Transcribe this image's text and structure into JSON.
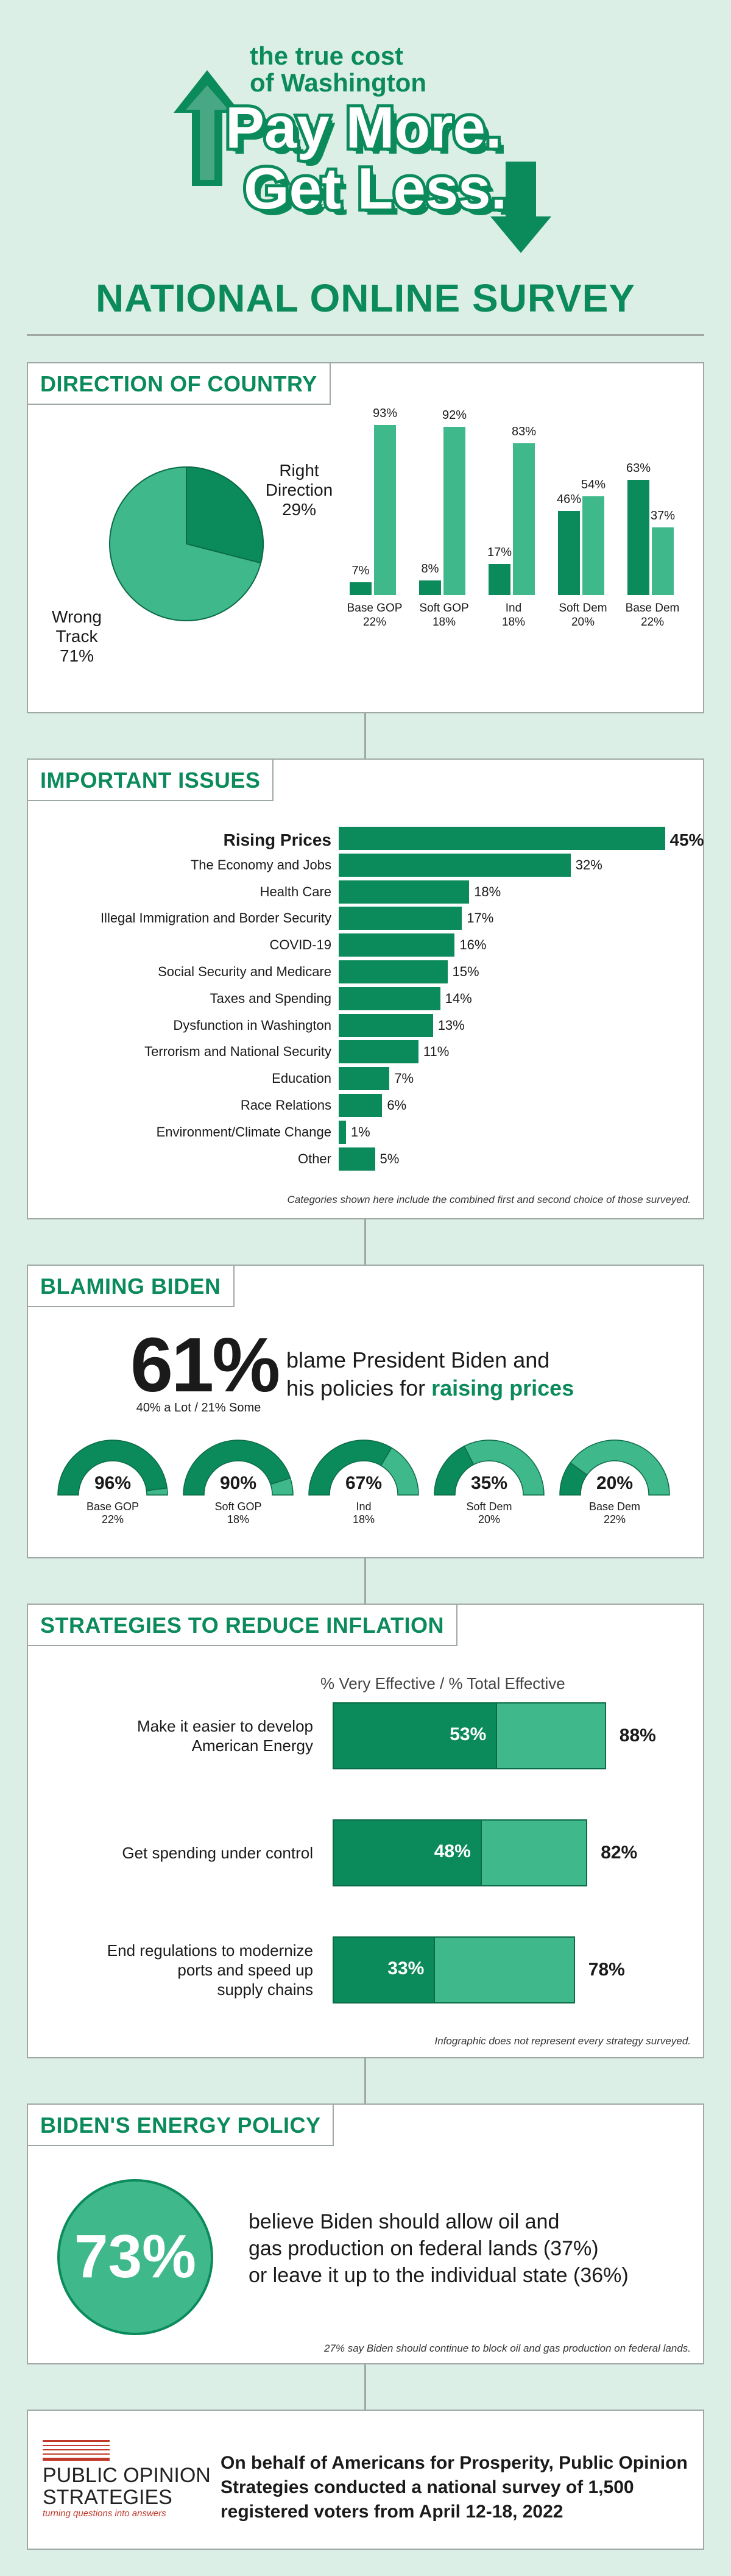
{
  "header": {
    "tagline_line1": "the true cost",
    "tagline_line2": "of Washington",
    "logo_line1": "Pay More.",
    "logo_line2": "Get Less.",
    "survey_title": "NATIONAL ONLINE SURVEY"
  },
  "direction": {
    "title": "DIRECTION OF COUNTRY",
    "right_label": "Right\nDirection\n29%",
    "right_l1": "Right",
    "right_l2": "Direction",
    "right_pct": "29%",
    "wrong_l1": "Wrong",
    "wrong_l2": "Track",
    "wrong_pct": "71%",
    "chart_data": {
      "type": "bar",
      "categories": [
        "Base GOP",
        "Soft GOP",
        "Ind",
        "Soft Dem",
        "Base Dem"
      ],
      "sublabels": [
        "22%",
        "18%",
        "18%",
        "20%",
        "22%"
      ],
      "series": [
        {
          "values": [
            7,
            8,
            17,
            46,
            63
          ],
          "labels": [
            "7%",
            "8%",
            "17%",
            "46%",
            "63%"
          ]
        },
        {
          "values": [
            93,
            92,
            83,
            54,
            37
          ],
          "labels": [
            "93%",
            "92%",
            "83%",
            "54%",
            "37%"
          ]
        }
      ],
      "pie": {
        "right_direction": 29,
        "wrong_track": 71
      }
    }
  },
  "issues": {
    "title": "IMPORTANT ISSUES",
    "footnote": "Categories shown here include the combined first and second choice of those surveyed.",
    "chart_data": {
      "type": "bar",
      "categories": [
        "Rising Prices",
        "The Economy and Jobs",
        "Health Care",
        "Illegal Immigration and Border Security",
        "COVID-19",
        "Social Security and Medicare",
        "Taxes and Spending",
        "Dysfunction in Washington",
        "Terrorism and National Security",
        "Education",
        "Race Relations",
        "Environment/Climate Change",
        "Other"
      ],
      "values": [
        45,
        32,
        18,
        17,
        16,
        15,
        14,
        13,
        11,
        7,
        6,
        1,
        5
      ],
      "labels": [
        "45%",
        "32%",
        "18%",
        "17%",
        "16%",
        "15%",
        "14%",
        "13%",
        "11%",
        "7%",
        "6%",
        "1%",
        "5%"
      ]
    }
  },
  "biden": {
    "title": "BLAMING BIDEN",
    "big_pct": "61%",
    "sub": "40% a Lot / 21% Some",
    "text_l1": "blame President Biden and",
    "text_l2_pre": "his policies for ",
    "text_l2_hl": "raising prices",
    "gauges": [
      {
        "pct": "96%",
        "value": 96,
        "label": "Base GOP",
        "share": "22%"
      },
      {
        "pct": "90%",
        "value": 90,
        "label": "Soft GOP",
        "share": "18%"
      },
      {
        "pct": "67%",
        "value": 67,
        "label": "Ind",
        "share": "18%"
      },
      {
        "pct": "35%",
        "value": 35,
        "label": "Soft Dem",
        "share": "20%"
      },
      {
        "pct": "20%",
        "value": 20,
        "label": "Base Dem",
        "share": "22%"
      }
    ]
  },
  "strategies": {
    "title": "STRATEGIES TO REDUCE INFLATION",
    "legend": "% Very Effective / % Total Effective",
    "footnote": "Infographic does not represent every strategy surveyed.",
    "chart_data": {
      "type": "bar",
      "categories": [
        "Make it easier to develop American Energy",
        "Get spending under control",
        "End regulations to modernize ports and speed up supply chains"
      ],
      "series": [
        {
          "values": [
            53,
            48,
            33
          ],
          "labels": [
            "53%",
            "48%",
            "33%"
          ]
        },
        {
          "values": [
            88,
            82,
            78
          ],
          "labels": [
            "88%",
            "82%",
            "78%"
          ]
        }
      ]
    },
    "rows": [
      {
        "l1": "Make it easier to develop",
        "l2": "American Energy",
        "l3": ""
      },
      {
        "l1": "Get spending under control",
        "l2": "",
        "l3": ""
      },
      {
        "l1": "End regulations to modernize",
        "l2": "ports and speed up",
        "l3": "supply chains"
      }
    ]
  },
  "energy": {
    "title": "BIDEN'S ENERGY POLICY",
    "big_pct": "73%",
    "text_l1": "believe Biden should allow oil and",
    "text_l2": "gas production on federal lands (37%)",
    "text_l3": "or leave it up to the individual state (36%)",
    "footnote": "27% say Biden should continue to block oil and gas production on federal lands."
  },
  "footer": {
    "org_l1": "PUBLIC OPINION",
    "org_l2": "STRATEGIES",
    "org_tag": "turning questions into answers",
    "text_l1": "On behalf of Americans for Prosperity, Public Opinion",
    "text_l2": "Strategies conducted a national survey of 1,500",
    "text_l3": "registered voters from April 12-18, 2022"
  },
  "colors": {
    "dark_green": "#0b8a5b",
    "light_green": "#3fb88b",
    "background": "#dcefe7",
    "border": "#9fa8a4"
  }
}
